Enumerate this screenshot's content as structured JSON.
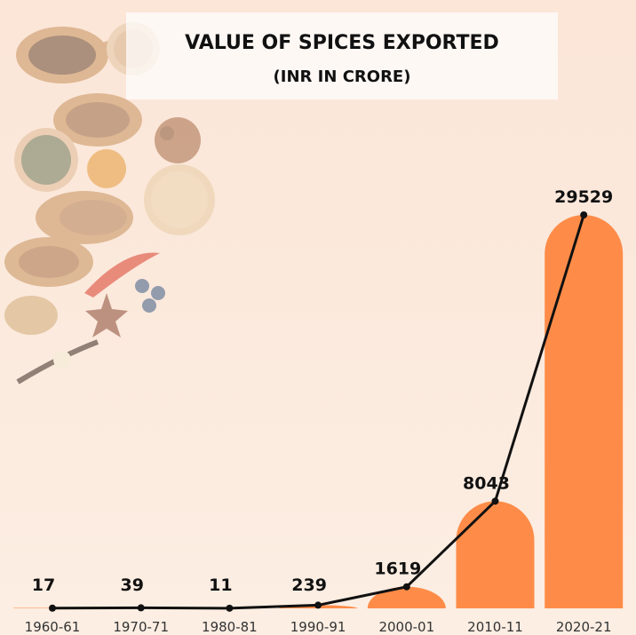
{
  "header": {
    "title": "VALUE OF SPICES EXPORTED",
    "subtitle": "(INR IN CRORE)"
  },
  "colors": {
    "bar": "#fe8c48",
    "line": "#111111",
    "text": "#111111",
    "tick": "#333333"
  },
  "chart_data": {
    "type": "bar",
    "title": "VALUE OF SPICES EXPORTED",
    "subtitle": "(INR IN CRORE)",
    "categories": [
      "1960-61",
      "1970-71",
      "1980-81",
      "1990-91",
      "2000-01",
      "2010-11",
      "2020-21"
    ],
    "series": [
      {
        "values": [
          17,
          39,
          11,
          239,
          1619,
          8043,
          29529
        ]
      }
    ],
    "overlay": "line",
    "xlabel": "",
    "ylabel": "",
    "ylim": [
      0,
      29529
    ],
    "grid": false,
    "legend": "none"
  }
}
